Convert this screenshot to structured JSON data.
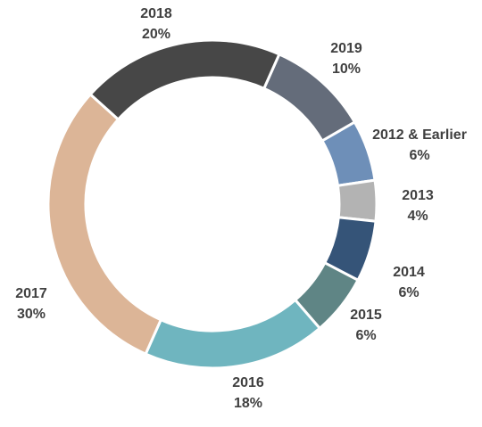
{
  "chart_data": {
    "type": "donut",
    "categories": [
      "2019",
      "2012 & Earlier",
      "2013",
      "2014",
      "2015",
      "2016",
      "2017",
      "2018"
    ],
    "values": [
      10,
      6,
      4,
      6,
      6,
      18,
      30,
      20
    ],
    "value_labels": [
      "10%",
      "6%",
      "4%",
      "6%",
      "6%",
      "18%",
      "30%",
      "20%"
    ],
    "colors": [
      "#646c7a",
      "#6e8fb8",
      "#b3b3b3",
      "#355478",
      "#5f8585",
      "#6fb5bf",
      "#dcb597",
      "#474747"
    ]
  }
}
